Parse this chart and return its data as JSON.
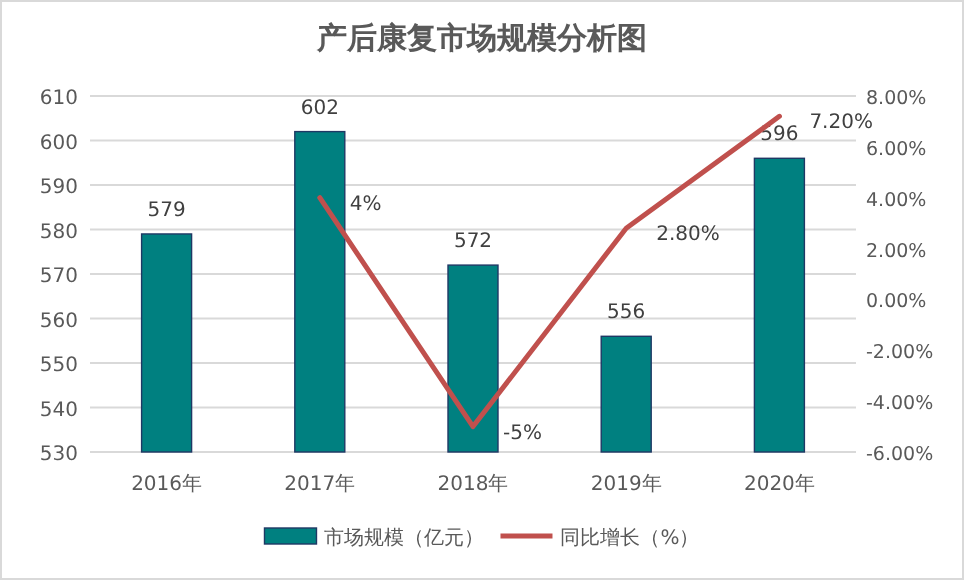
{
  "chart_data": {
    "type": "bar",
    "title": "产后康复市场规模分析图",
    "categories": [
      "2016年",
      "2017年",
      "2018年",
      "2019年",
      "2020年"
    ],
    "series": [
      {
        "name": "市场规模（亿元）",
        "color": "#008080",
        "values": [
          579,
          602,
          572,
          556,
          596
        ],
        "value_labels": [
          "579",
          "602",
          "572",
          "556",
          "596"
        ]
      },
      {
        "name": "同比增长（%）",
        "type": "line",
        "axis": "y2",
        "color": "#c0504d",
        "values": [
          null,
          4,
          -5,
          2.8,
          7.2
        ],
        "value_labels": [
          null,
          "4%",
          "-5%",
          "2.80%",
          "7.20%"
        ]
      }
    ],
    "ylim": [
      530,
      610
    ],
    "yticks": [
      530,
      540,
      550,
      560,
      570,
      580,
      590,
      600,
      610
    ],
    "y2lim": [
      -6,
      8
    ],
    "y2ticks": [
      {
        "value": -6,
        "label": "-6.00%"
      },
      {
        "value": -4,
        "label": "-4.00%"
      },
      {
        "value": -2,
        "label": "-2.00%"
      },
      {
        "value": 0,
        "label": "0.00%"
      },
      {
        "value": 2,
        "label": "2.00%"
      },
      {
        "value": 4,
        "label": "4.00%"
      },
      {
        "value": 6,
        "label": "6.00%"
      },
      {
        "value": 8,
        "label": "8.00%"
      }
    ],
    "grid": "y",
    "legend": "bottom",
    "marker": "none",
    "line_style": "solid"
  }
}
